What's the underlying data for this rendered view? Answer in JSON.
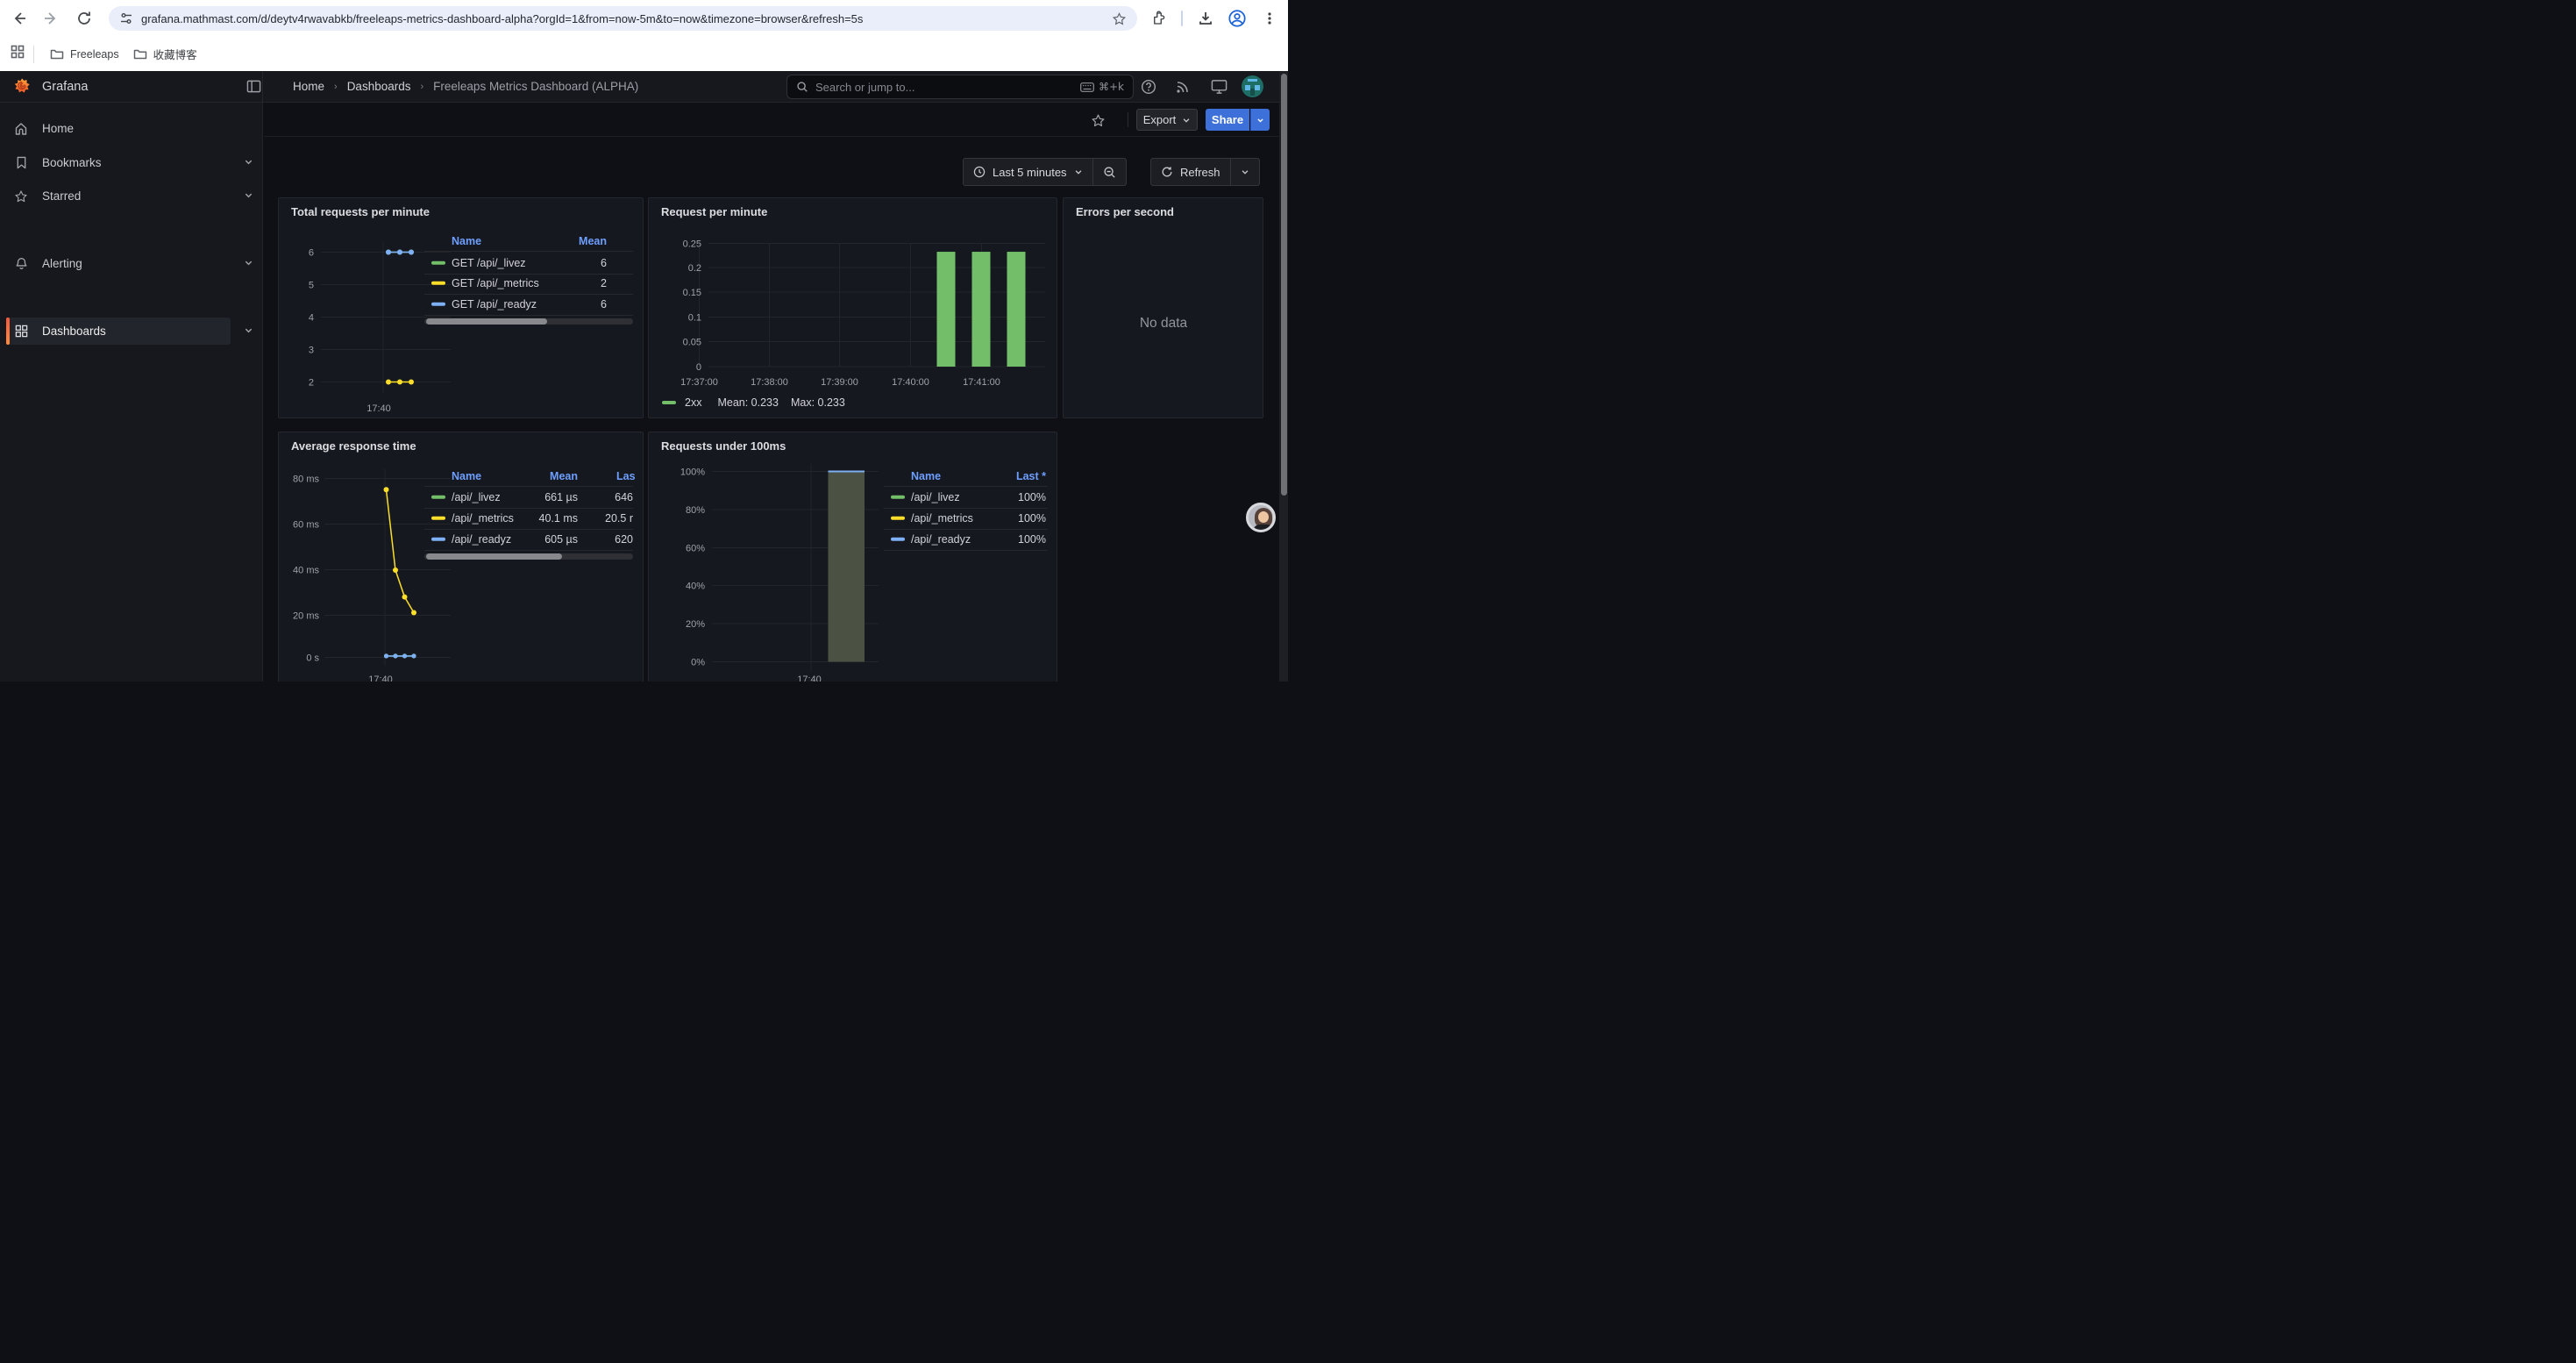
{
  "browser": {
    "url": "grafana.mathmast.com/d/deytv4rwavabkb/freeleaps-metrics-dashboard-alpha?orgId=1&from=now-5m&to=now&timezone=browser&refresh=5s",
    "bookmarks": [
      {
        "label": "Freeleaps"
      },
      {
        "label": "收藏博客"
      }
    ]
  },
  "nav": {
    "brand": "Grafana",
    "breadcrumb": {
      "items": [
        "Home",
        "Dashboards"
      ],
      "current": "Freeleaps Metrics Dashboard (ALPHA)"
    },
    "search": {
      "placeholder": "Search or jump to...",
      "shortcut": "⌘+k"
    }
  },
  "actions": {
    "export_label": "Export",
    "share_label": "Share"
  },
  "timebar": {
    "range_label": "Last 5 minutes",
    "refresh_label": "Refresh"
  },
  "sidebar": {
    "items": [
      {
        "label": "Home",
        "icon": "home"
      },
      {
        "label": "Bookmarks",
        "icon": "bookmark",
        "expandable": true
      },
      {
        "label": "Starred",
        "icon": "star",
        "expandable": true
      },
      {
        "label": "Dashboards",
        "icon": "apps",
        "expandable": true
      },
      {
        "label": "Alerting",
        "icon": "bell",
        "expandable": true
      }
    ],
    "active": "Dashboards"
  },
  "colors": {
    "green": "#73BF69",
    "yellow": "#FADE2A",
    "blue": "#7EB0F5",
    "link_blue": "#6e9fff",
    "share_blue": "#3d71d9",
    "bar_fill_olive": "#4b5243"
  },
  "panels": {
    "total_requests": {
      "title": "Total requests per minute",
      "legend": {
        "columns": [
          "Name",
          "Mean"
        ],
        "rows": [
          {
            "name": "GET /api/_livez",
            "color": "#73BF69",
            "mean": "6"
          },
          {
            "name": "GET /api/_metrics",
            "color": "#FADE2A",
            "mean": "2"
          },
          {
            "name": "GET /api/_readyz",
            "color": "#7EB0F5",
            "mean": "6"
          }
        ]
      },
      "chart_data": {
        "type": "line",
        "yticks": [
          6,
          5,
          4,
          3,
          2
        ],
        "x_tick": "17:40",
        "series": [
          {
            "name": "GET /api/_livez",
            "color": "#73BF69",
            "values": [
              6,
              6,
              6
            ]
          },
          {
            "name": "GET /api/_metrics",
            "color": "#FADE2A",
            "values": [
              2,
              2,
              2
            ]
          },
          {
            "name": "GET /api/_readyz",
            "color": "#7EB0F5",
            "values": [
              6,
              6,
              6
            ]
          }
        ]
      }
    },
    "request_per_minute": {
      "title": "Request per minute",
      "legend": {
        "series": "2xx",
        "color": "#73BF69",
        "mean": "Mean: 0.233",
        "max": "Max: 0.233"
      },
      "chart_data": {
        "type": "bar",
        "yticks": [
          0.25,
          0.2,
          0.15,
          0.1,
          0.05,
          0
        ],
        "xticks": [
          "17:37:00",
          "17:38:00",
          "17:39:00",
          "17:40:00",
          "17:41:00"
        ],
        "values": [
          0.233,
          0.233,
          0.233
        ],
        "ylim": [
          0,
          0.25
        ]
      }
    },
    "errors": {
      "title": "Errors per second",
      "empty": "No data"
    },
    "avg_response": {
      "title": "Average response time",
      "legend": {
        "columns": [
          "Name",
          "Mean",
          "Las"
        ],
        "rows": [
          {
            "name": "/api/_livez",
            "color": "#73BF69",
            "mean": "661 µs",
            "last": "646"
          },
          {
            "name": "/api/_metrics",
            "color": "#FADE2A",
            "mean": "40.1 ms",
            "last": "20.5 r"
          },
          {
            "name": "/api/_readyz",
            "color": "#7EB0F5",
            "mean": "605 µs",
            "last": "620"
          }
        ]
      },
      "chart_data": {
        "type": "line",
        "yticks": [
          "80 ms",
          "60 ms",
          "40 ms",
          "20 ms",
          "0 s"
        ],
        "x_tick": "17:40",
        "series": [
          {
            "name": "/api/_livez",
            "color": "#73BF69",
            "values_ms": [
              0.66,
              0.66,
              0.66,
              0.66
            ]
          },
          {
            "name": "/api/_metrics",
            "color": "#FADE2A",
            "values_ms": [
              75,
              39,
              27,
              20
            ]
          },
          {
            "name": "/api/_readyz",
            "color": "#7EB0F5",
            "values_ms": [
              0.6,
              0.6,
              0.6,
              0.6
            ]
          }
        ]
      }
    },
    "under_100ms": {
      "title": "Requests under 100ms",
      "legend": {
        "columns": [
          "Name",
          "Last *"
        ],
        "rows": [
          {
            "name": "/api/_livez",
            "color": "#73BF69",
            "last": "100%"
          },
          {
            "name": "/api/_metrics",
            "color": "#FADE2A",
            "last": "100%"
          },
          {
            "name": "/api/_readyz",
            "color": "#7EB0F5",
            "last": "100%"
          }
        ]
      },
      "chart_data": {
        "type": "area",
        "yticks": [
          "100%",
          "80%",
          "60%",
          "40%",
          "20%",
          "0%"
        ],
        "x_tick": "17:40",
        "value": 100,
        "fill": "#4b5243",
        "line_color": "#7EB0F5"
      }
    }
  }
}
